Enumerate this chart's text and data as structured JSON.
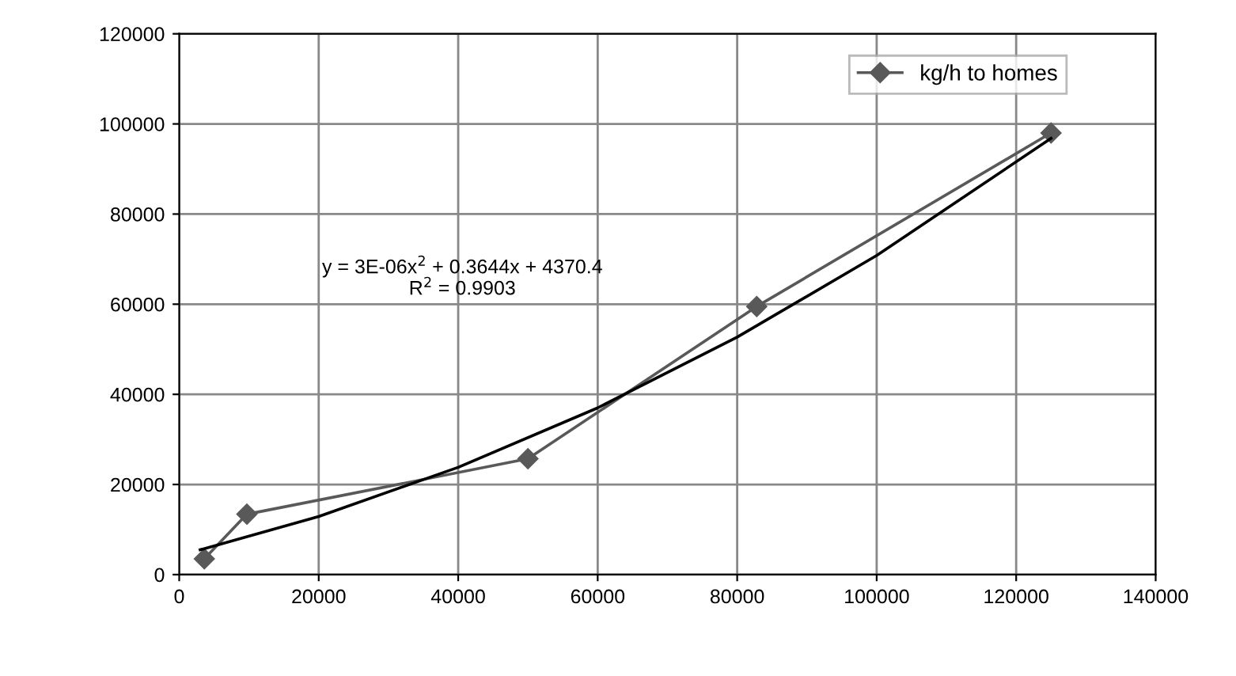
{
  "chart_data": {
    "type": "line",
    "x": [
      3600,
      9700,
      50000,
      82800,
      125000
    ],
    "series": [
      {
        "name": "kg/h to homes",
        "color": "#595959",
        "values": [
          3500,
          13400,
          25700,
          59500,
          98000
        ],
        "marker": "diamond"
      },
      {
        "type": "line",
        "color": "#000000",
        "x": [
          3000,
          20000,
          40000,
          60000,
          80000,
          100000,
          125000
        ],
        "values": [
          5500,
          12900,
          23800,
          37000,
          52700,
          70800,
          96800
        ],
        "marker": "none"
      }
    ],
    "xlim": [
      0,
      140000
    ],
    "ylim": [
      0,
      120000
    ],
    "xticks": [
      0,
      20000,
      40000,
      60000,
      80000,
      100000,
      120000,
      140000
    ],
    "yticks": [
      0,
      20000,
      40000,
      60000,
      80000,
      100000,
      120000
    ],
    "grid": true,
    "legend": "top right",
    "annotations": [
      "y = 3E-06x$^{2}$ + 0.3644x + 4370.4\nR$^{2}$ = 0.9903"
    ]
  }
}
